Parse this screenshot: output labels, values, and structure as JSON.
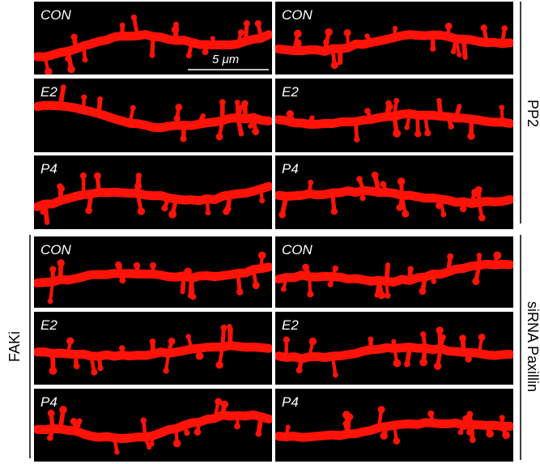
{
  "panels": [
    [
      "CON",
      "CON"
    ],
    [
      "E2",
      "E2"
    ],
    [
      "P4",
      "P4"
    ],
    [
      "CON",
      "CON"
    ],
    [
      "E2",
      "E2"
    ],
    [
      "P4",
      "P4"
    ]
  ],
  "scale_bar": "5 μm",
  "groups": {
    "top_right": "PP2",
    "bottom_right": "siRNA Paxillin",
    "bottom_left": "FAKi"
  }
}
